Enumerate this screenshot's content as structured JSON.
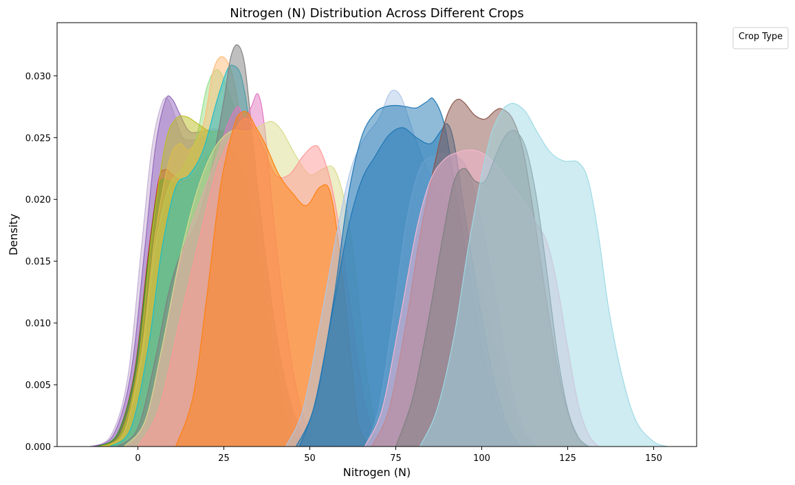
{
  "chart_data": {
    "type": "area",
    "title": "Nitrogen (N) Distribution Across Different Crops",
    "xlabel": "Nitrogen (N)",
    "ylabel": "Density",
    "xlim": [
      -23.5,
      162.5
    ],
    "ylim": [
      0,
      0.0343
    ],
    "xticks": [
      0,
      25,
      50,
      75,
      100,
      125,
      150
    ],
    "yticks": [
      0.0,
      0.005,
      0.01,
      0.015,
      0.02,
      0.025,
      0.03
    ],
    "ytick_labels": [
      "0.000",
      "0.005",
      "0.010",
      "0.015",
      "0.020",
      "0.025",
      "0.030"
    ],
    "legend": {
      "title": "Crop Type",
      "placement": "outside-top-right",
      "entries": []
    },
    "grid": false,
    "series": [
      {
        "color": "#c5b0d5",
        "x": [
          -14,
          -8,
          -3,
          1,
          4,
          7,
          9,
          11,
          13,
          16,
          20,
          25,
          30,
          34,
          38,
          42,
          45,
          48
        ],
        "y": [
          0,
          0.0008,
          0.0055,
          0.016,
          0.024,
          0.0278,
          0.028,
          0.0265,
          0.025,
          0.0248,
          0.025,
          0.024,
          0.02,
          0.014,
          0.006,
          0.0015,
          0.0003,
          0
        ]
      },
      {
        "color": "#9467bd",
        "x": [
          -13,
          -7,
          -2,
          2,
          5,
          8,
          10,
          12,
          15,
          19,
          24,
          29,
          33,
          37,
          41,
          44,
          47
        ],
        "y": [
          0,
          0.001,
          0.006,
          0.016,
          0.024,
          0.028,
          0.0281,
          0.027,
          0.0255,
          0.0255,
          0.0255,
          0.023,
          0.0175,
          0.011,
          0.004,
          0.001,
          0
        ]
      },
      {
        "color": "#d62728",
        "x": [
          -12,
          -6,
          -1,
          3,
          6,
          8,
          10,
          13,
          17,
          21,
          25,
          29,
          32,
          36,
          40,
          44,
          47
        ],
        "y": [
          0,
          0.001,
          0.006,
          0.0155,
          0.0215,
          0.0224,
          0.022,
          0.0215,
          0.0218,
          0.0225,
          0.024,
          0.0235,
          0.02,
          0.0135,
          0.006,
          0.001,
          0
        ]
      },
      {
        "color": "#2ca02c",
        "x": [
          -12,
          -6,
          -1,
          3,
          6,
          9,
          12,
          16,
          20,
          25,
          29,
          33,
          37,
          41,
          44,
          47
        ],
        "y": [
          0,
          0.001,
          0.0058,
          0.015,
          0.021,
          0.0215,
          0.0212,
          0.022,
          0.0235,
          0.0245,
          0.0235,
          0.019,
          0.012,
          0.005,
          0.0012,
          0
        ]
      },
      {
        "color": "#98df8a",
        "x": [
          -10,
          -4,
          1,
          5,
          9,
          13,
          17,
          20,
          23,
          26,
          29,
          32,
          36,
          40,
          44,
          48
        ],
        "y": [
          0,
          0.0012,
          0.007,
          0.016,
          0.021,
          0.0225,
          0.025,
          0.029,
          0.0305,
          0.029,
          0.026,
          0.02,
          0.012,
          0.005,
          0.001,
          0
        ]
      },
      {
        "color": "#ffbb78",
        "x": [
          -10,
          -4,
          1,
          5,
          9,
          12,
          15,
          19,
          22,
          25,
          28,
          31,
          35,
          39,
          43,
          47,
          50
        ],
        "y": [
          0,
          0.0012,
          0.0075,
          0.017,
          0.023,
          0.0245,
          0.024,
          0.026,
          0.0305,
          0.0315,
          0.0295,
          0.024,
          0.016,
          0.008,
          0.003,
          0.0005,
          0
        ]
      },
      {
        "color": "#bcbd22",
        "x": [
          -11,
          -5,
          0,
          4,
          8,
          11,
          14,
          17,
          21,
          25,
          29,
          33,
          37,
          41,
          45,
          48
        ],
        "y": [
          0,
          0.001,
          0.0065,
          0.017,
          0.0245,
          0.0265,
          0.0267,
          0.0262,
          0.0255,
          0.0255,
          0.0245,
          0.02,
          0.013,
          0.0055,
          0.0012,
          0
        ]
      },
      {
        "color": "#17becf",
        "x": [
          -8,
          -2,
          3,
          7,
          11,
          15,
          19,
          23,
          26,
          28,
          30,
          32,
          35,
          39,
          43,
          47,
          51
        ],
        "y": [
          0,
          0.0015,
          0.008,
          0.016,
          0.021,
          0.022,
          0.024,
          0.028,
          0.0305,
          0.0308,
          0.03,
          0.027,
          0.02,
          0.011,
          0.0045,
          0.001,
          0
        ]
      },
      {
        "color": "#7f7f7f",
        "x": [
          -6,
          0,
          5,
          9,
          13,
          17,
          21,
          25,
          27,
          29,
          31,
          33,
          36,
          40,
          44,
          48,
          52
        ],
        "y": [
          0,
          0.0015,
          0.007,
          0.0125,
          0.016,
          0.018,
          0.022,
          0.028,
          0.0315,
          0.0325,
          0.031,
          0.026,
          0.018,
          0.0095,
          0.004,
          0.001,
          0
        ]
      },
      {
        "color": "#e377c2",
        "x": [
          -4,
          2,
          7,
          11,
          15,
          19,
          23,
          26,
          29,
          31,
          33,
          35,
          37,
          40,
          44,
          48,
          52,
          56
        ],
        "y": [
          0,
          0.002,
          0.008,
          0.0135,
          0.0175,
          0.0205,
          0.0235,
          0.026,
          0.0275,
          0.0265,
          0.0275,
          0.0285,
          0.0255,
          0.017,
          0.008,
          0.0025,
          0.0005,
          0
        ]
      },
      {
        "color": "#dbdb8d",
        "x": [
          -4,
          2,
          7,
          12,
          17,
          22,
          27,
          32,
          36,
          39,
          42,
          46,
          50,
          54,
          57,
          60,
          63,
          66,
          70
        ],
        "y": [
          0,
          0.002,
          0.008,
          0.015,
          0.0205,
          0.024,
          0.0255,
          0.0255,
          0.026,
          0.0263,
          0.0255,
          0.0235,
          0.022,
          0.0225,
          0.0225,
          0.02,
          0.015,
          0.007,
          0
        ]
      },
      {
        "color": "#ff9896",
        "x": [
          0,
          6,
          12,
          18,
          23,
          28,
          32,
          36,
          40,
          44,
          48,
          51,
          53,
          56,
          59,
          62,
          65,
          68,
          72
        ],
        "y": [
          0,
          0.003,
          0.01,
          0.017,
          0.0225,
          0.0255,
          0.0265,
          0.0245,
          0.022,
          0.022,
          0.0235,
          0.0243,
          0.024,
          0.0215,
          0.017,
          0.011,
          0.005,
          0.0015,
          0
        ]
      },
      {
        "color": "#ff7f0e",
        "x": [
          11,
          16,
          20,
          24,
          28,
          30,
          32,
          34,
          37,
          41,
          45,
          49,
          53,
          56,
          59,
          62,
          64,
          67
        ],
        "y": [
          0,
          0.004,
          0.012,
          0.021,
          0.026,
          0.027,
          0.027,
          0.026,
          0.0245,
          0.022,
          0.0205,
          0.0195,
          0.021,
          0.0205,
          0.015,
          0.007,
          0.002,
          0
        ]
      },
      {
        "color": "#aec7e8",
        "x": [
          43,
          48,
          53,
          58,
          62,
          66,
          70,
          73,
          75,
          77,
          80,
          84,
          88,
          92,
          96,
          100,
          104,
          108,
          112,
          116
        ],
        "y": [
          0,
          0.003,
          0.01,
          0.0175,
          0.0225,
          0.025,
          0.0265,
          0.0285,
          0.0288,
          0.028,
          0.0255,
          0.0225,
          0.0205,
          0.0185,
          0.016,
          0.0125,
          0.008,
          0.004,
          0.001,
          0
        ]
      },
      {
        "color": "#1f77b4",
        "x": [
          47,
          52,
          57,
          61,
          65,
          69,
          72,
          75,
          78,
          81,
          84,
          86,
          89,
          92,
          96,
          100,
          104,
          108,
          112
        ],
        "y": [
          0,
          0.004,
          0.012,
          0.02,
          0.025,
          0.027,
          0.0275,
          0.0276,
          0.0275,
          0.0274,
          0.0279,
          0.0281,
          0.0262,
          0.0215,
          0.0145,
          0.008,
          0.0035,
          0.0008,
          0
        ]
      },
      {
        "color": "#aec7e8",
        "x": [
          66,
          70,
          74,
          78,
          82,
          86,
          90,
          94,
          97,
          100,
          104,
          108,
          112,
          116
        ],
        "y": [
          0,
          0.003,
          0.01,
          0.018,
          0.0225,
          0.0235,
          0.0237,
          0.0232,
          0.0215,
          0.018,
          0.012,
          0.0055,
          0.0015,
          0
        ]
      },
      {
        "color": "#1f77b4",
        "x": [
          46,
          51,
          56,
          61,
          65,
          69,
          73,
          77,
          81,
          85,
          88,
          90,
          92,
          95,
          99,
          103,
          107,
          111
        ],
        "y": [
          0,
          0.003,
          0.01,
          0.0175,
          0.0215,
          0.0235,
          0.0252,
          0.0258,
          0.025,
          0.0245,
          0.0255,
          0.0261,
          0.0245,
          0.019,
          0.012,
          0.006,
          0.002,
          0
        ]
      },
      {
        "color": "#8c564b",
        "x": [
          68,
          73,
          78,
          82,
          86,
          89,
          91,
          93,
          95,
          98,
          101,
          104,
          106,
          109,
          112,
          115,
          119,
          123,
          127,
          131
        ],
        "y": [
          0,
          0.003,
          0.01,
          0.017,
          0.0225,
          0.026,
          0.0275,
          0.0281,
          0.0278,
          0.0268,
          0.0265,
          0.0272,
          0.0273,
          0.0265,
          0.024,
          0.019,
          0.0115,
          0.005,
          0.0012,
          0
        ]
      },
      {
        "color": "#f7b6d2",
        "x": [
          66,
          71,
          76,
          81,
          85,
          89,
          93,
          97,
          101,
          105,
          109,
          113,
          116,
          119,
          122,
          125,
          128,
          131,
          134
        ],
        "y": [
          0,
          0.003,
          0.01,
          0.0175,
          0.0215,
          0.0232,
          0.0238,
          0.024,
          0.0236,
          0.0225,
          0.021,
          0.0195,
          0.018,
          0.0165,
          0.013,
          0.008,
          0.0035,
          0.001,
          0
        ]
      },
      {
        "color": "#7f7f7f",
        "x": [
          75,
          80,
          85,
          89,
          92,
          95,
          98,
          101,
          104,
          107,
          110,
          113,
          116,
          119,
          122,
          125,
          128,
          131
        ],
        "y": [
          0,
          0.004,
          0.011,
          0.0175,
          0.0215,
          0.0225,
          0.0215,
          0.0215,
          0.0235,
          0.0252,
          0.0255,
          0.024,
          0.02,
          0.014,
          0.0075,
          0.003,
          0.0008,
          0
        ]
      },
      {
        "color": "#9edae5",
        "x": [
          82,
          87,
          92,
          96,
          100,
          103,
          106,
          108,
          110,
          113,
          116,
          120,
          124,
          128,
          131,
          134,
          137,
          141,
          145,
          150,
          154
        ],
        "y": [
          0,
          0.003,
          0.009,
          0.016,
          0.022,
          0.0255,
          0.0272,
          0.0277,
          0.0277,
          0.027,
          0.0255,
          0.0238,
          0.0231,
          0.023,
          0.0215,
          0.017,
          0.011,
          0.0055,
          0.002,
          0.0004,
          0
        ]
      }
    ]
  }
}
